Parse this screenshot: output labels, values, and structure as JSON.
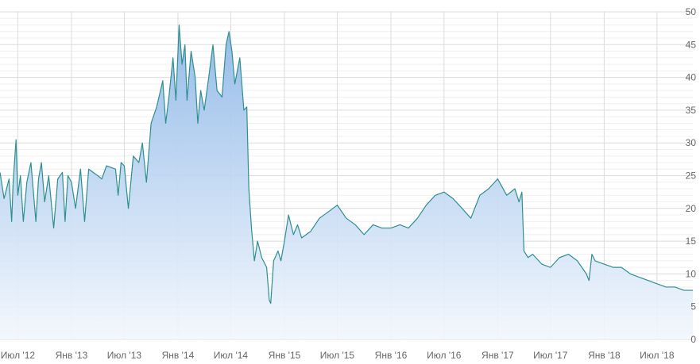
{
  "colors": {
    "line": "#2e8f8f",
    "area_top": "#8fb8e8",
    "area_bottom": "#f2f7fd",
    "grid_major": "#dcdcdc",
    "grid_minor": "#efefef",
    "tick_text": "#666666"
  },
  "chart_data": {
    "type": "area",
    "title": "",
    "xlabel": "",
    "ylabel": "",
    "ylim": [
      0,
      50
    ],
    "xlim": [
      "2012-05-01",
      "2018-11-01"
    ],
    "y_ticks": [
      "0",
      "5",
      "10",
      "15",
      "20",
      "25",
      "30",
      "35",
      "40",
      "45",
      "50"
    ],
    "x_ticks": [
      {
        "date": "2012-07-01",
        "label": "Июл '12"
      },
      {
        "date": "2013-01-01",
        "label": "Янв '13"
      },
      {
        "date": "2013-07-01",
        "label": "Июл '13"
      },
      {
        "date": "2014-01-01",
        "label": "Янв '14"
      },
      {
        "date": "2014-07-01",
        "label": "Июл '14"
      },
      {
        "date": "2015-01-01",
        "label": "Янв '15"
      },
      {
        "date": "2015-07-01",
        "label": "Июл '15"
      },
      {
        "date": "2016-01-01",
        "label": "Янв '16"
      },
      {
        "date": "2016-07-01",
        "label": "Июл '16"
      },
      {
        "date": "2017-01-01",
        "label": "Янв '17"
      },
      {
        "date": "2017-07-01",
        "label": "Июл '17"
      },
      {
        "date": "2018-01-01",
        "label": "Янв '18"
      },
      {
        "date": "2018-07-01",
        "label": "Июл '18"
      }
    ],
    "grid": true,
    "legend": "none",
    "series": [
      {
        "points": [
          [
            "2012-05-01",
            25.5
          ],
          [
            "2012-05-15",
            21.5
          ],
          [
            "2012-06-01",
            24.5
          ],
          [
            "2012-06-10",
            18
          ],
          [
            "2012-06-15",
            24
          ],
          [
            "2012-06-25",
            30.5
          ],
          [
            "2012-07-01",
            22
          ],
          [
            "2012-07-10",
            25
          ],
          [
            "2012-07-20",
            18
          ],
          [
            "2012-08-01",
            24
          ],
          [
            "2012-08-15",
            27
          ],
          [
            "2012-09-01",
            18
          ],
          [
            "2012-09-10",
            24.5
          ],
          [
            "2012-09-20",
            27
          ],
          [
            "2012-10-01",
            21
          ],
          [
            "2012-10-15",
            25
          ],
          [
            "2012-11-01",
            17
          ],
          [
            "2012-11-15",
            24.5
          ],
          [
            "2012-12-01",
            25.5
          ],
          [
            "2012-12-10",
            18
          ],
          [
            "2012-12-20",
            25
          ],
          [
            "2013-01-01",
            24
          ],
          [
            "2013-01-15",
            20
          ],
          [
            "2013-02-01",
            26
          ],
          [
            "2013-02-15",
            18
          ],
          [
            "2013-03-01",
            26
          ],
          [
            "2013-04-01",
            25
          ],
          [
            "2013-04-15",
            24.5
          ],
          [
            "2013-05-01",
            26.5
          ],
          [
            "2013-06-01",
            26
          ],
          [
            "2013-06-10",
            22
          ],
          [
            "2013-06-20",
            27
          ],
          [
            "2013-07-01",
            26.5
          ],
          [
            "2013-07-15",
            20
          ],
          [
            "2013-08-01",
            28
          ],
          [
            "2013-08-20",
            27
          ],
          [
            "2013-09-01",
            30
          ],
          [
            "2013-09-15",
            24
          ],
          [
            "2013-10-01",
            33
          ],
          [
            "2013-10-20",
            35.5
          ],
          [
            "2013-11-10",
            39.5
          ],
          [
            "2013-11-20",
            33
          ],
          [
            "2013-12-01",
            37
          ],
          [
            "2013-12-15",
            43
          ],
          [
            "2013-12-25",
            36.5
          ],
          [
            "2014-01-05",
            48
          ],
          [
            "2014-01-15",
            42
          ],
          [
            "2014-01-25",
            45
          ],
          [
            "2014-02-01",
            36.5
          ],
          [
            "2014-02-15",
            44
          ],
          [
            "2014-03-01",
            40
          ],
          [
            "2014-03-10",
            33
          ],
          [
            "2014-03-20",
            38
          ],
          [
            "2014-04-01",
            35
          ],
          [
            "2014-04-15",
            39.5
          ],
          [
            "2014-05-01",
            45
          ],
          [
            "2014-05-15",
            38
          ],
          [
            "2014-06-01",
            37
          ],
          [
            "2014-06-15",
            45
          ],
          [
            "2014-06-25",
            47
          ],
          [
            "2014-07-05",
            44
          ],
          [
            "2014-07-15",
            39
          ],
          [
            "2014-08-01",
            43
          ],
          [
            "2014-08-15",
            35
          ],
          [
            "2014-08-25",
            35.5
          ],
          [
            "2014-09-01",
            23
          ],
          [
            "2014-09-10",
            17
          ],
          [
            "2014-09-20",
            12
          ],
          [
            "2014-10-01",
            15
          ],
          [
            "2014-10-15",
            12.5
          ],
          [
            "2014-11-01",
            11
          ],
          [
            "2014-11-10",
            6
          ],
          [
            "2014-11-15",
            5.5
          ],
          [
            "2014-11-25",
            12
          ],
          [
            "2014-12-10",
            13.5
          ],
          [
            "2014-12-20",
            12
          ],
          [
            "2015-01-01",
            15
          ],
          [
            "2015-01-15",
            19
          ],
          [
            "2015-02-01",
            16
          ],
          [
            "2015-02-15",
            17.5
          ],
          [
            "2015-03-01",
            15.5
          ],
          [
            "2015-04-01",
            16.5
          ],
          [
            "2015-05-01",
            18.5
          ],
          [
            "2015-06-01",
            19.5
          ],
          [
            "2015-07-01",
            20.5
          ],
          [
            "2015-08-01",
            18.5
          ],
          [
            "2015-09-01",
            17.5
          ],
          [
            "2015-10-01",
            16
          ],
          [
            "2015-11-01",
            17.5
          ],
          [
            "2015-12-01",
            17
          ],
          [
            "2016-01-01",
            17
          ],
          [
            "2016-02-01",
            17.5
          ],
          [
            "2016-03-01",
            17
          ],
          [
            "2016-04-01",
            18.5
          ],
          [
            "2016-05-01",
            20.5
          ],
          [
            "2016-06-01",
            22
          ],
          [
            "2016-07-01",
            22.5
          ],
          [
            "2016-08-01",
            21.5
          ],
          [
            "2016-09-01",
            20
          ],
          [
            "2016-10-01",
            18.5
          ],
          [
            "2016-11-01",
            22
          ],
          [
            "2016-12-01",
            23
          ],
          [
            "2017-01-01",
            24.5
          ],
          [
            "2017-02-01",
            22
          ],
          [
            "2017-03-01",
            23
          ],
          [
            "2017-03-15",
            21
          ],
          [
            "2017-03-25",
            22.5
          ],
          [
            "2017-04-01",
            13.5
          ],
          [
            "2017-04-15",
            12.5
          ],
          [
            "2017-05-01",
            13
          ],
          [
            "2017-06-01",
            11.5
          ],
          [
            "2017-07-01",
            11
          ],
          [
            "2017-08-01",
            12.5
          ],
          [
            "2017-09-01",
            13
          ],
          [
            "2017-10-01",
            12
          ],
          [
            "2017-11-01",
            10
          ],
          [
            "2017-11-10",
            9
          ],
          [
            "2017-11-20",
            13
          ],
          [
            "2017-12-01",
            12
          ],
          [
            "2018-01-01",
            11.5
          ],
          [
            "2018-02-01",
            11
          ],
          [
            "2018-03-01",
            11
          ],
          [
            "2018-04-01",
            10
          ],
          [
            "2018-05-01",
            9.5
          ],
          [
            "2018-06-01",
            9
          ],
          [
            "2018-07-01",
            8.5
          ],
          [
            "2018-08-01",
            8
          ],
          [
            "2018-09-01",
            8
          ],
          [
            "2018-10-01",
            7.5
          ],
          [
            "2018-11-01",
            7.5
          ]
        ]
      }
    ]
  }
}
